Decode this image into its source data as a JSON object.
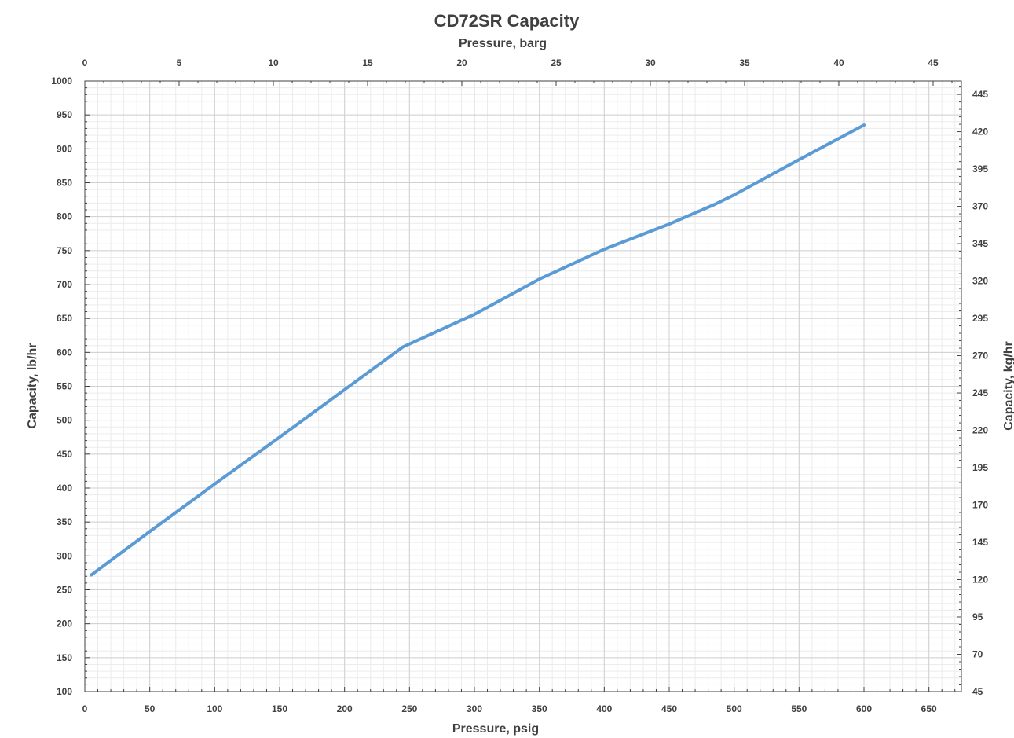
{
  "chart_data": {
    "type": "line",
    "title": "CD72SR Capacity",
    "xlabel": "Pressure, psig",
    "x2label": "Pressure, barg",
    "ylabel": "Capacity, lb/hr",
    "y2label": "Capacity, kg/hr",
    "xlim": [
      0,
      675
    ],
    "ylim": [
      100,
      1000
    ],
    "x2lim": [
      0,
      46.5
    ],
    "y2lim": [
      45,
      454
    ],
    "x_ticks": [
      0,
      50,
      100,
      150,
      200,
      250,
      300,
      350,
      400,
      450,
      500,
      550,
      600,
      650
    ],
    "y_ticks": [
      100,
      150,
      200,
      250,
      300,
      350,
      400,
      450,
      500,
      550,
      600,
      650,
      700,
      750,
      800,
      850,
      900,
      950,
      1000
    ],
    "x2_ticks": [
      0,
      5,
      10,
      15,
      20,
      25,
      30,
      35,
      40,
      45
    ],
    "y2_ticks": [
      45,
      70,
      95,
      120,
      145,
      170,
      195,
      220,
      245,
      270,
      295,
      320,
      345,
      370,
      395,
      420,
      445
    ],
    "grid": true,
    "series": [
      {
        "x": [
          5,
          50,
          100,
          150,
          200,
          245,
          300,
          350,
          400,
          450,
          485,
          500,
          550,
          600
        ],
        "y": [
          272,
          336,
          406,
          475,
          545,
          608,
          656,
          708,
          752,
          789,
          818,
          832,
          884,
          935
        ]
      }
    ],
    "colors": {
      "line": "#5b9bd5",
      "grid_major": "#d0d0d0",
      "grid_minor": "#ececec",
      "axis": "#404040",
      "text": "#404040"
    }
  }
}
